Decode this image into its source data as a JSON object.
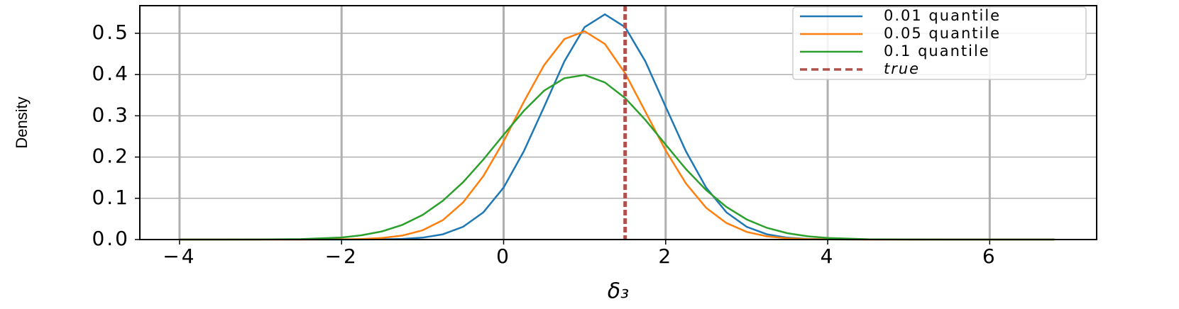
{
  "chart_data": {
    "type": "line",
    "x": [
      -4,
      -3.5,
      -3,
      -2.5,
      -2,
      -1.75,
      -1.5,
      -1.25,
      -1,
      -0.75,
      -0.5,
      -0.25,
      0,
      0.25,
      0.5,
      0.75,
      1,
      1.25,
      1.5,
      1.75,
      2,
      2.25,
      2.5,
      2.75,
      3,
      3.25,
      3.5,
      3.75,
      4,
      4.5,
      5,
      5.5,
      6,
      6.8
    ],
    "series": [
      {
        "name": "0.01 quantile",
        "color": "#1f77b4",
        "values": [
          0,
          0,
          0,
          0,
          0,
          0.0001,
          0.0004,
          0.0016,
          0.0047,
          0.0128,
          0.031,
          0.066,
          0.126,
          0.214,
          0.322,
          0.432,
          0.515,
          0.546,
          0.515,
          0.432,
          0.322,
          0.214,
          0.126,
          0.066,
          0.031,
          0.0128,
          0.0047,
          0.0016,
          0.0004,
          0,
          0,
          0,
          0,
          0
        ]
      },
      {
        "name": "0.05 quantile",
        "color": "#ff7f0e",
        "values": [
          0,
          0,
          0,
          0,
          0.0004,
          0.0013,
          0.0038,
          0.0097,
          0.0225,
          0.047,
          0.09,
          0.154,
          0.238,
          0.334,
          0.423,
          0.486,
          0.505,
          0.474,
          0.403,
          0.31,
          0.216,
          0.136,
          0.077,
          0.04,
          0.0186,
          0.0078,
          0.003,
          0.001,
          0.0003,
          0,
          0,
          0,
          0,
          0
        ]
      },
      {
        "name": "0.1 quantile",
        "color": "#2ca02c",
        "values": [
          0,
          0,
          0.0002,
          0.001,
          0.005,
          0.0104,
          0.0198,
          0.0355,
          0.0596,
          0.094,
          0.139,
          0.194,
          0.254,
          0.312,
          0.361,
          0.391,
          0.399,
          0.381,
          0.343,
          0.29,
          0.23,
          0.171,
          0.12,
          0.079,
          0.0488,
          0.0283,
          0.0154,
          0.0079,
          0.0038,
          0.0007,
          0.0001,
          0,
          0,
          0
        ]
      }
    ],
    "vline": {
      "name": "true",
      "x": 1.5,
      "color": "#b0504d"
    },
    "xlabel": "δ₃",
    "ylabel": "Density",
    "xlim": [
      -4.49,
      7.32
    ],
    "ylim": [
      0,
      0.567
    ],
    "xticks": [
      {
        "value": -4,
        "label": "−4"
      },
      {
        "value": -2,
        "label": "−2"
      },
      0,
      2,
      4,
      6
    ],
    "yticks": [
      {
        "value": 0,
        "label": "0.0"
      },
      0.1,
      0.2,
      0.3,
      0.4,
      0.5
    ],
    "grid": true,
    "legend": "upper right"
  }
}
